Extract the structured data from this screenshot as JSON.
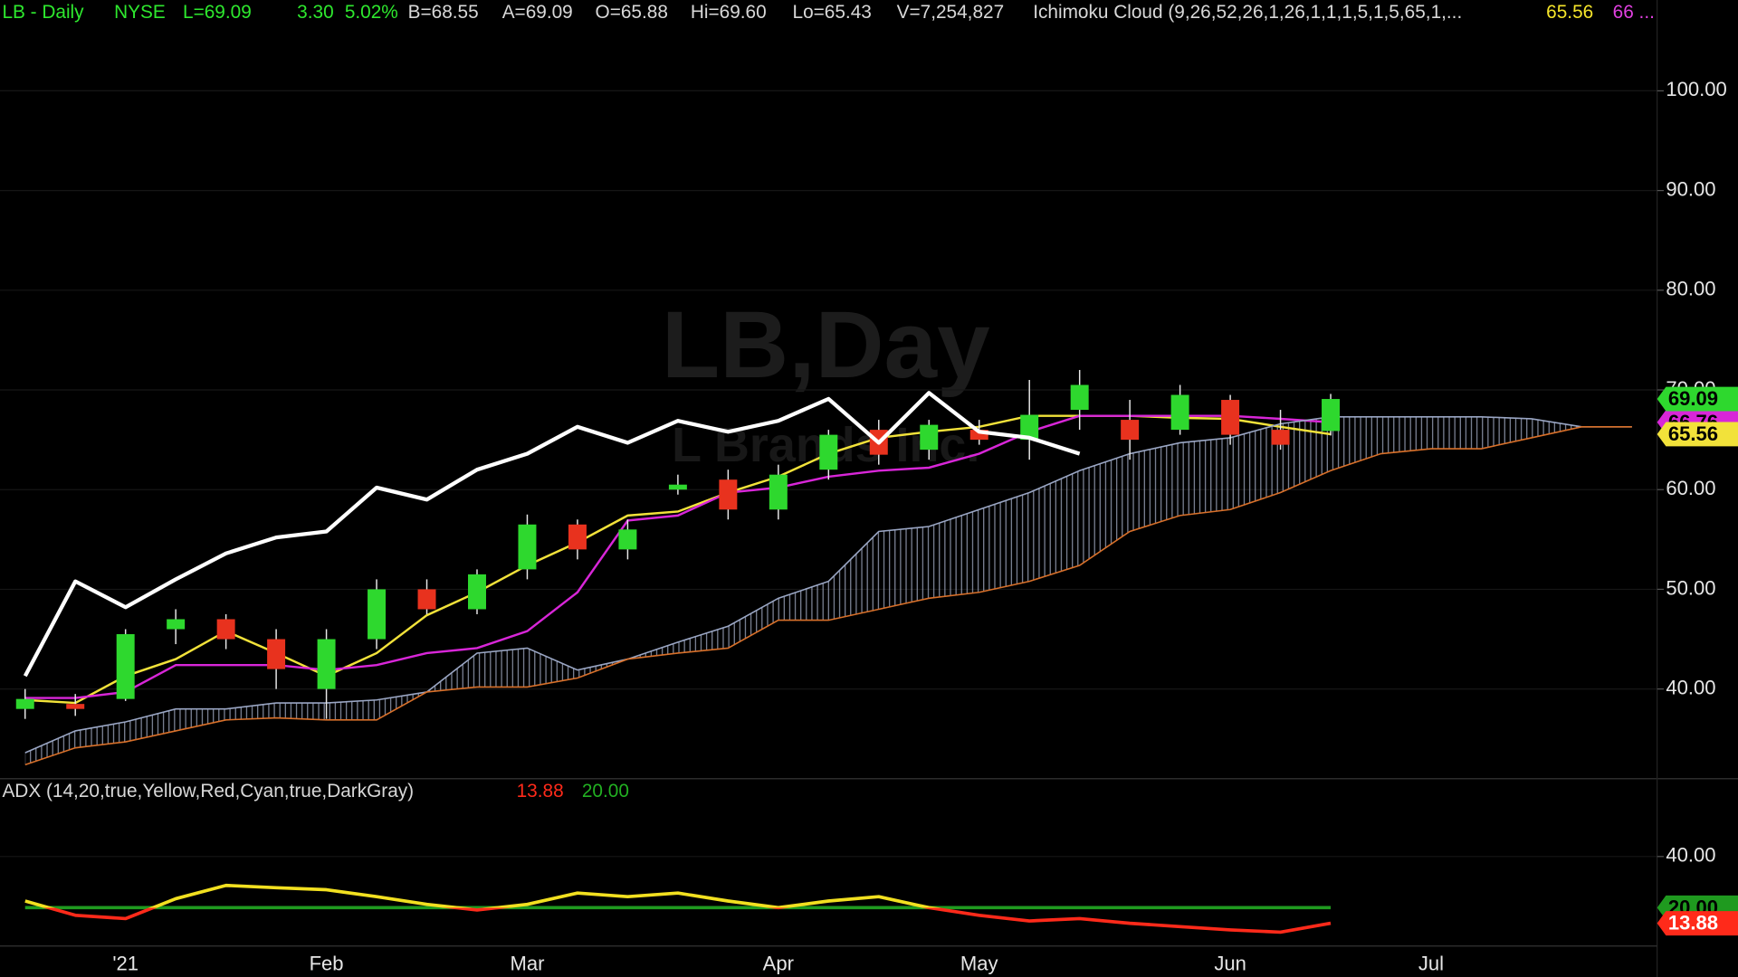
{
  "header": [
    "LB - Daily",
    "NYSE",
    "L=69.09",
    "3.30",
    "5.02%",
    "B=68.55",
    "A=69.09",
    "O=65.88",
    "Hi=69.60",
    "Lo=65.43",
    "V=7,254,827",
    "Ichimoku Cloud (9,26,52,26,1,26,1,1,1,5,1,5,65,1,...",
    "65.56",
    "66 ..."
  ],
  "watermark": [
    "LB,Day",
    "L Brands Inc."
  ],
  "chart_data": [
    {
      "type": "candlestick",
      "open": [
        38,
        38.5,
        39,
        46,
        47,
        45,
        40,
        45,
        50,
        48,
        52,
        56.5,
        54,
        60,
        61,
        58,
        62,
        66,
        64,
        66,
        65,
        68,
        67,
        66,
        69,
        66,
        65.88,
        null,
        null,
        null,
        null,
        null,
        null
      ],
      "high": [
        40,
        39.5,
        46,
        48,
        47.5,
        46,
        46,
        51,
        51,
        52,
        57.5,
        57,
        57,
        61.5,
        62,
        62.5,
        66,
        67,
        67,
        67,
        71,
        72,
        69,
        70.5,
        69.5,
        68,
        69.6,
        null,
        null,
        null,
        null,
        null,
        null
      ],
      "low": [
        37,
        37.3,
        38.8,
        44.5,
        44,
        40,
        37,
        44,
        47.5,
        47.5,
        51,
        53,
        53,
        59.5,
        57,
        57,
        61,
        62.5,
        63,
        64.5,
        63,
        66,
        63,
        65.5,
        64.5,
        64,
        65.43,
        null,
        null,
        null,
        null,
        null,
        null
      ],
      "close": [
        39,
        38,
        45.5,
        47,
        45,
        42,
        45,
        50,
        48,
        51.5,
        56.5,
        54,
        56,
        60.5,
        58,
        61.5,
        65.5,
        63.5,
        66.5,
        65,
        67.5,
        70.5,
        65,
        69.5,
        65.5,
        64.5,
        69.09,
        null,
        null,
        null,
        null,
        null,
        null
      ],
      "up_color": "#2ed82e",
      "down_color": "#e8321e",
      "series": [
        {
          "color": "#ffffff",
          "values": [
            41.3,
            50.8,
            48.2,
            51,
            53.6,
            55.2,
            55.8,
            60.2,
            59,
            62,
            63.6,
            66.3,
            64.7,
            66.9,
            65.8,
            66.9,
            69.1,
            64.7,
            69.7,
            65.8,
            65.2,
            63.6,
            null,
            null,
            null,
            null,
            null,
            null,
            null,
            null,
            null,
            null,
            null
          ]
        },
        {
          "color": "#f2e23a",
          "values": [
            38.9,
            38.6,
            41.3,
            43,
            45.8,
            43.6,
            41.3,
            43.6,
            47.4,
            49.7,
            52.4,
            54.7,
            57.4,
            57.8,
            59.7,
            61.3,
            63.6,
            65.2,
            65.8,
            66.3,
            67.4,
            67.4,
            67.4,
            67.2,
            67.1,
            66.3,
            65.56,
            null,
            null,
            null,
            null,
            null,
            null
          ]
        },
        {
          "color": "#d826d8",
          "values": [
            39.1,
            39.1,
            39.7,
            42.4,
            42.4,
            42.4,
            41.9,
            42.4,
            43.6,
            44.1,
            45.8,
            49.7,
            56.9,
            57.4,
            59.7,
            60.2,
            61.3,
            61.9,
            62.2,
            63.6,
            65.8,
            67.4,
            67.4,
            67.4,
            67.4,
            67.1,
            66.76,
            null,
            null,
            null,
            null,
            null,
            null
          ]
        },
        {
          "color": "#9aa6c4",
          "values": [
            33.6,
            35.8,
            36.7,
            38,
            38,
            38.6,
            38.6,
            38.9,
            39.7,
            43.6,
            44.1,
            41.9,
            43,
            44.7,
            46.3,
            49.1,
            50.8,
            55.8,
            56.3,
            58,
            59.7,
            61.9,
            63.6,
            64.7,
            65.2,
            66.6,
            67.3,
            67.3,
            67.3,
            67.3,
            67.1,
            66.3,
            66.3
          ]
        },
        {
          "color": "#d8702a",
          "values": [
            32.4,
            34.1,
            34.7,
            35.8,
            36.9,
            37.1,
            36.9,
            36.9,
            39.7,
            40.2,
            40.2,
            41.1,
            43,
            43.6,
            44.1,
            46.9,
            46.9,
            48,
            49.1,
            49.7,
            50.8,
            52.4,
            55.8,
            57.4,
            58,
            59.7,
            61.9,
            63.6,
            64.1,
            64.1,
            65.2,
            66.3,
            66.3
          ]
        }
      ],
      "cloud": true,
      "ylim": [
        32,
        108
      ],
      "yticks": [
        {
          "value": 40,
          "label": "40.00"
        },
        {
          "value": 50,
          "label": "50.00"
        },
        {
          "value": 60,
          "label": "60.00"
        },
        {
          "value": 70,
          "label": "70.00"
        },
        {
          "value": 80,
          "label": "80.00"
        },
        {
          "value": 90,
          "label": "90.00"
        },
        {
          "value": 100,
          "label": "100.00"
        }
      ],
      "grid": true
    },
    {
      "type": "line",
      "title": "ADX (14,20,true,Yellow,Red,Cyan,true,DarkGray)",
      "categories": [
        null,
        null,
        "'21",
        null,
        null,
        null,
        "Feb",
        null,
        null,
        null,
        "Mar",
        null,
        null,
        null,
        null,
        "Apr",
        null,
        null,
        null,
        "May",
        null,
        null,
        null,
        null,
        "Jun",
        null,
        null,
        null,
        "Jul",
        null,
        null,
        null,
        null
      ],
      "series": [
        {
          "color": "#f2e020",
          "below_color": "#ff2a1a",
          "values": [
            22.6,
            17,
            15.7,
            23.5,
            28.7,
            27.8,
            27,
            24.3,
            21.3,
            19.1,
            21.3,
            25.7,
            24.3,
            25.7,
            22.6,
            20,
            22.6,
            24.3,
            20,
            17,
            14.8,
            15.7,
            13.9,
            12.6,
            11.3,
            10.4,
            13.88,
            null,
            null,
            null,
            null,
            null,
            null
          ]
        }
      ],
      "hline": {
        "value": 20,
        "label": "20.00",
        "color": "#1f9a1f"
      },
      "ylim": [
        5,
        70
      ],
      "yticks": [
        {
          "value": 40,
          "label": "40.00"
        }
      ],
      "grid": true
    }
  ]
}
